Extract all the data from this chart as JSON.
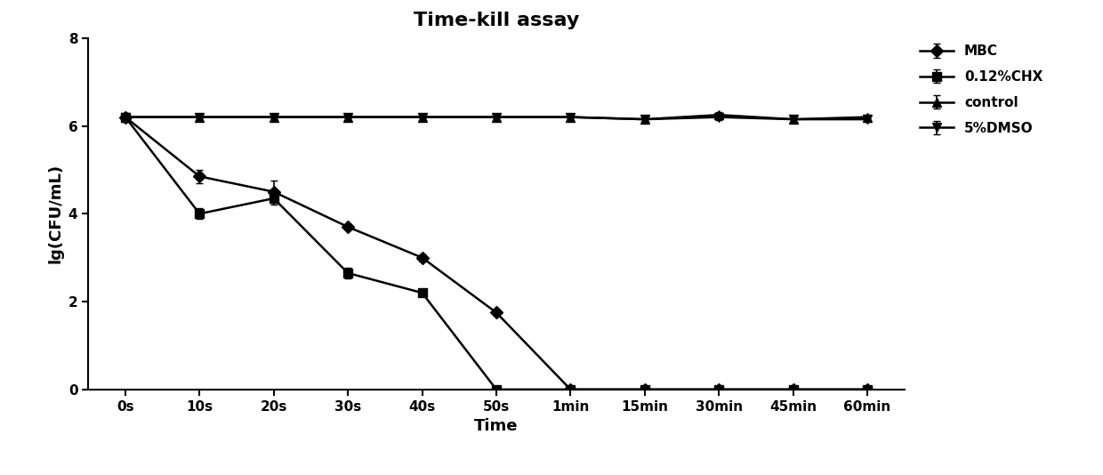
{
  "title": "Time-kill assay",
  "xlabel": "Time",
  "ylabel": "lg(CFU/mL)",
  "x_labels": [
    "0s",
    "10s",
    "20s",
    "30s",
    "40s",
    "50s",
    "1min",
    "15min",
    "30min",
    "45min",
    "60min"
  ],
  "x_positions": [
    0,
    1,
    2,
    3,
    4,
    5,
    6,
    7,
    8,
    9,
    10
  ],
  "ylim": [
    0,
    8
  ],
  "yticks": [
    0,
    2,
    4,
    6,
    8
  ],
  "series": [
    {
      "label": "MBC",
      "marker": "D",
      "markersize": 7,
      "y": [
        6.2,
        4.85,
        4.5,
        3.7,
        3.0,
        1.75,
        0.0,
        0.0,
        0.0,
        0.0,
        0.0
      ],
      "yerr": [
        0,
        0.15,
        0.25,
        0.0,
        0.08,
        0.0,
        0.0,
        0.0,
        0.0,
        0.0,
        0.0
      ],
      "color": "#000000",
      "linewidth": 1.8
    },
    {
      "label": "0.12%CHX",
      "marker": "s",
      "markersize": 7,
      "y": [
        6.2,
        4.0,
        4.35,
        2.65,
        2.2,
        0.0,
        0.0,
        0.0,
        0.0,
        0.0,
        0.0
      ],
      "yerr": [
        0,
        0.12,
        0.15,
        0.12,
        0.08,
        0.0,
        0.0,
        0.0,
        0.0,
        0.0,
        0.0
      ],
      "color": "#000000",
      "linewidth": 1.8
    },
    {
      "label": "control",
      "marker": "^",
      "markersize": 7,
      "y": [
        6.2,
        6.2,
        6.2,
        6.2,
        6.2,
        6.2,
        6.2,
        6.15,
        6.25,
        6.15,
        6.2
      ],
      "yerr": [
        0,
        0,
        0,
        0,
        0,
        0,
        0,
        0.06,
        0.06,
        0.06,
        0.06
      ],
      "color": "#000000",
      "linewidth": 1.8
    },
    {
      "label": "5%DMSO",
      "marker": "v",
      "markersize": 7,
      "y": [
        6.2,
        6.2,
        6.2,
        6.2,
        6.2,
        6.2,
        6.2,
        6.15,
        6.2,
        6.15,
        6.15
      ],
      "yerr": [
        0,
        0,
        0,
        0,
        0,
        0,
        0,
        0.06,
        0.06,
        0.06,
        0.06
      ],
      "color": "#000000",
      "linewidth": 1.8
    }
  ],
  "background_color": "#ffffff",
  "title_fontsize": 16,
  "axis_label_fontsize": 13,
  "tick_fontsize": 11,
  "legend_fontsize": 11,
  "figure_width": 12.4,
  "figure_height": 5.34,
  "dpi": 100
}
